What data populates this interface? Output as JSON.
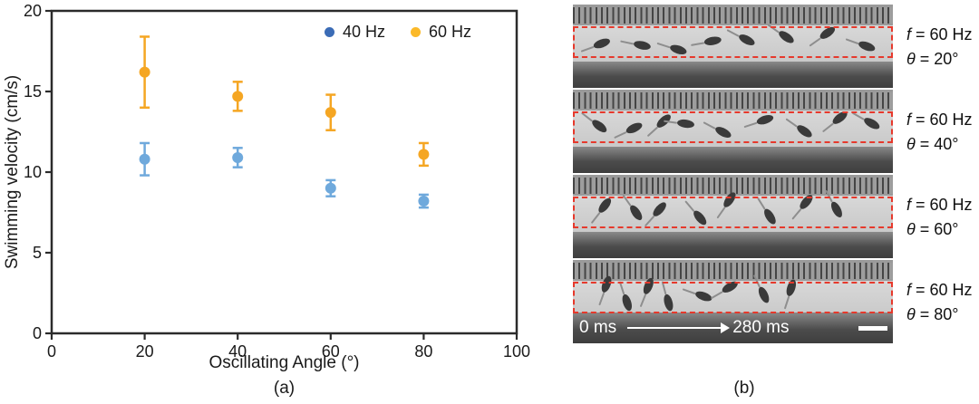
{
  "figure_type": "two-panel scientific figure",
  "chart_data": {
    "type": "scatter",
    "x": [
      20,
      40,
      60,
      80
    ],
    "series": [
      {
        "name": "40 Hz",
        "marker_color": "#6FA9DC",
        "legend_color": "#3B6CB6",
        "values": [
          10.8,
          10.9,
          9.0,
          8.2
        ],
        "errors": [
          1.0,
          0.6,
          0.5,
          0.4
        ]
      },
      {
        "name": "60 Hz",
        "marker_color": "#F5A623",
        "legend_color": "#FBB929",
        "values": [
          16.2,
          14.7,
          13.7,
          11.1
        ],
        "errors": [
          2.2,
          0.9,
          1.1,
          0.7
        ]
      }
    ],
    "title": "",
    "xlabel": "Oscillating Angle (°)",
    "ylabel": "Swimming velocity (cm/s)",
    "xlim": [
      0,
      100
    ],
    "ylim": [
      0,
      20
    ],
    "xticks": [
      0,
      20,
      40,
      60,
      80,
      100
    ],
    "yticks": [
      0,
      5,
      10,
      15,
      20
    ],
    "grid": false,
    "legend_position": "top-right"
  },
  "panel_a": {
    "caption": "(a)"
  },
  "panel_b": {
    "caption": "(b)",
    "dashed_box_color": "#E6392C",
    "frames": [
      {
        "freq_label": "f = 60 Hz",
        "angle_label": "θ = 20°"
      },
      {
        "freq_label": "f = 60 Hz",
        "angle_label": "θ = 40°"
      },
      {
        "freq_label": "f = 60 Hz",
        "angle_label": "θ = 60°"
      },
      {
        "freq_label": "f = 60 Hz",
        "angle_label": "θ = 80°"
      }
    ],
    "timeline": {
      "start_label": "0 ms",
      "end_label": "280 ms"
    }
  }
}
